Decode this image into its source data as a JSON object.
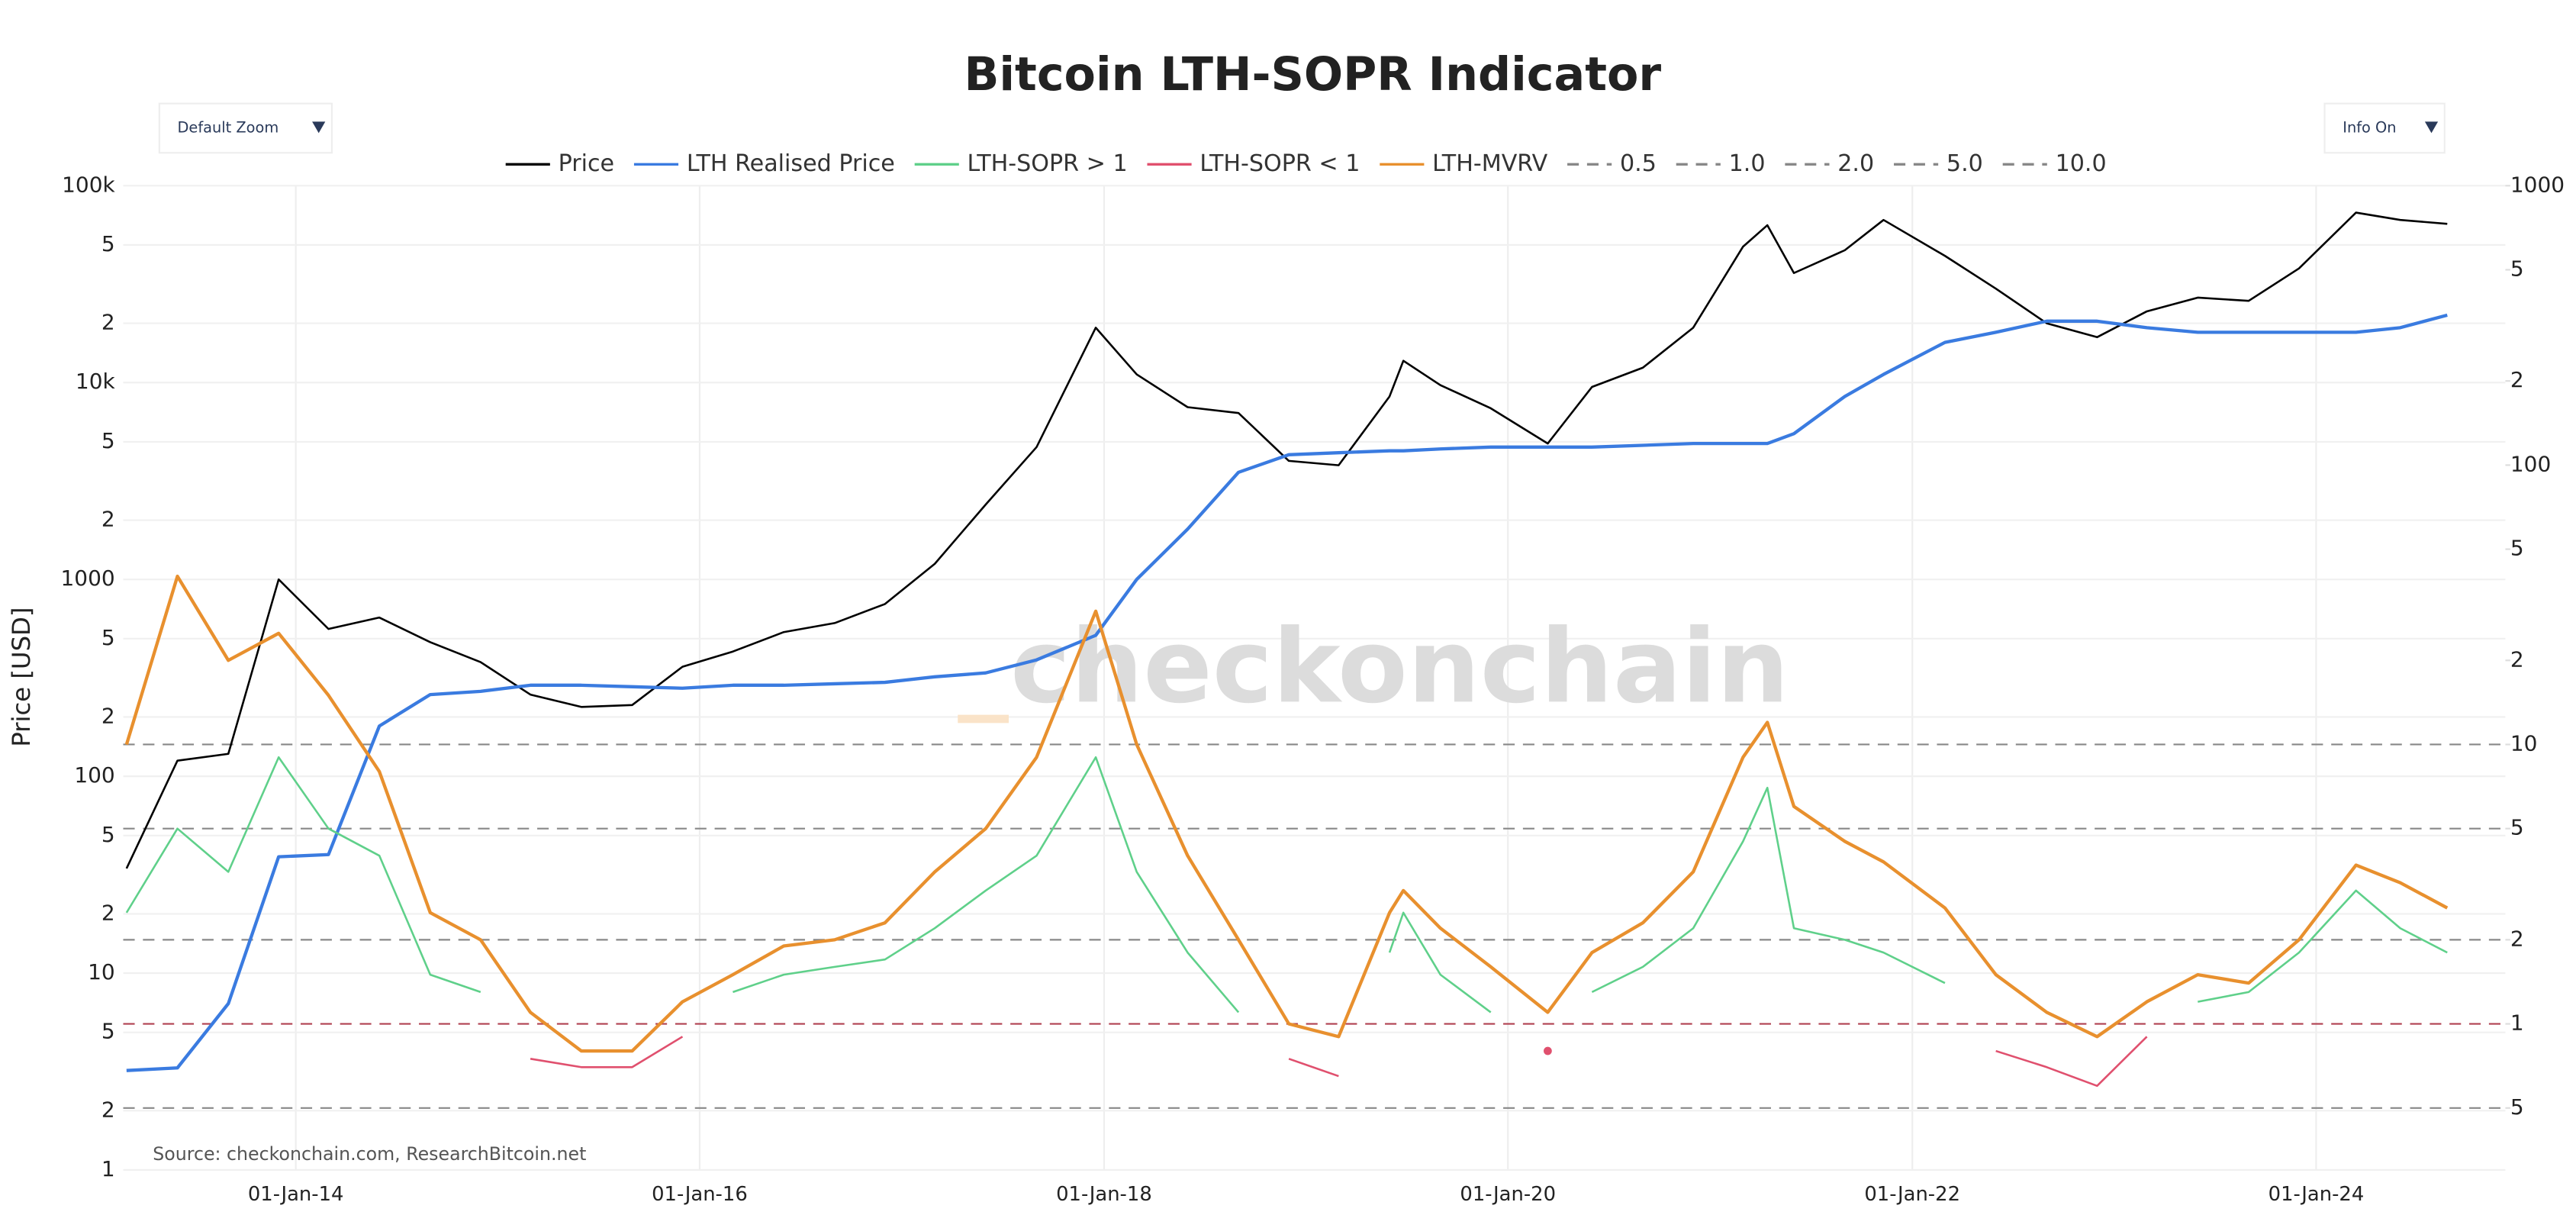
{
  "controls": {
    "zoom": "Default Zoom",
    "info": "Info On"
  },
  "chart_data": {
    "type": "line",
    "title": "Bitcoin LTH-SOPR Indicator",
    "ylabel": "Price [USD]",
    "source": "Source: checkonchain.com, ResearchBitcoin.net",
    "watermark": "checkonchain",
    "log_scale": true,
    "grid": true,
    "legend": "top",
    "x": [
      "2013-03-01",
      "2013-06-01",
      "2013-09-01",
      "2013-12-01",
      "2014-03-01",
      "2014-06-01",
      "2014-09-01",
      "2014-12-01",
      "2015-03-01",
      "2015-06-01",
      "2015-09-01",
      "2015-12-01",
      "2016-03-01",
      "2016-06-01",
      "2016-09-01",
      "2016-12-01",
      "2017-03-01",
      "2017-06-01",
      "2017-09-01",
      "2017-12-17",
      "2018-03-01",
      "2018-06-01",
      "2018-09-01",
      "2018-12-01",
      "2019-03-01",
      "2019-06-01",
      "2019-06-26",
      "2019-09-01",
      "2019-12-01",
      "2020-03-13",
      "2020-06-01",
      "2020-09-01",
      "2020-12-01",
      "2021-03-01",
      "2021-04-14",
      "2021-06-01",
      "2021-09-01",
      "2021-11-10",
      "2022-03-01",
      "2022-06-01",
      "2022-09-01",
      "2022-12-01",
      "2023-03-01",
      "2023-06-01",
      "2023-09-01",
      "2023-12-01",
      "2024-03-13",
      "2024-06-01",
      "2024-08-25"
    ],
    "xlim": [
      "2013-02-23",
      "2024-12-08"
    ],
    "xticks": [
      {
        "value": "2014-01-01",
        "label": "01-Jan-14"
      },
      {
        "value": "2016-01-01",
        "label": "01-Jan-16"
      },
      {
        "value": "2018-01-01",
        "label": "01-Jan-18"
      },
      {
        "value": "2020-01-01",
        "label": "01-Jan-20"
      },
      {
        "value": "2022-01-01",
        "label": "01-Jan-22"
      },
      {
        "value": "2024-01-01",
        "label": "01-Jan-24"
      }
    ],
    "ylim": [
      1,
      100000
    ],
    "yticks": [
      1,
      {
        "value": 2,
        "label": "2"
      },
      5,
      10,
      {
        "value": 20,
        "label": "2"
      },
      {
        "value": 50,
        "label": "5"
      },
      100,
      {
        "value": 200,
        "label": "2"
      },
      {
        "value": 500,
        "label": "5"
      },
      1000,
      {
        "value": 2000,
        "label": "2"
      },
      {
        "value": 5000,
        "label": "5"
      },
      {
        "value": 10000,
        "label": "10k"
      },
      {
        "value": 20000,
        "label": "2"
      },
      {
        "value": 50000,
        "label": "5"
      },
      {
        "value": 100000,
        "label": "100k"
      }
    ],
    "y2lim": [
      0.3,
      1000
    ],
    "y2ticks": [
      {
        "value": 0.5,
        "label": "5"
      },
      1,
      2,
      5,
      10,
      {
        "value": 20,
        "label": "2"
      },
      {
        "value": 50,
        "label": "5"
      },
      100,
      {
        "value": 200,
        "label": "2"
      },
      {
        "value": 500,
        "label": "5"
      },
      1000
    ],
    "series": [
      {
        "name": "Price",
        "color": "#000000",
        "width": 1.2,
        "values": [
          34,
          120,
          130,
          1000,
          560,
          640,
          480,
          380,
          260,
          225,
          230,
          360,
          430,
          540,
          600,
          750,
          1200,
          2400,
          4700,
          19000,
          11000,
          7500,
          7000,
          4000,
          3800,
          8500,
          12900,
          9700,
          7400,
          4900,
          9500,
          11900,
          19000,
          49000,
          63000,
          36000,
          47000,
          67000,
          44000,
          30000,
          20000,
          17000,
          23000,
          27000,
          26000,
          38000,
          73000,
          67000,
          64000
        ]
      },
      {
        "name": "LTH Realised Price",
        "color": "#3a7be0",
        "width": 2,
        "values": [
          3.2,
          3.3,
          7,
          39,
          40,
          180,
          260,
          270,
          290,
          290,
          285,
          280,
          290,
          290,
          295,
          300,
          320,
          335,
          390,
          520,
          1000,
          1800,
          3500,
          4300,
          4400,
          4500,
          4500,
          4600,
          4700,
          4700,
          4700,
          4800,
          4900,
          4900,
          4900,
          5500,
          8500,
          11000,
          16000,
          18000,
          20500,
          20500,
          19000,
          18000,
          18000,
          18000,
          18000,
          19000,
          22000
        ]
      },
      {
        "name": "LTH-SOPR > 1",
        "color": "#5fd08a",
        "width": 1.2,
        "axis": "y2",
        "values": [
          2.5,
          5,
          3.5,
          9,
          5,
          4,
          1.5,
          1.3,
          null,
          null,
          null,
          null,
          1.3,
          1.5,
          1.6,
          1.7,
          2.2,
          3.0,
          4.0,
          9,
          3.5,
          1.8,
          1.1,
          null,
          null,
          1.8,
          2.5,
          1.5,
          1.1,
          null,
          1.3,
          1.6,
          2.2,
          4.5,
          7,
          2.2,
          2.0,
          1.8,
          1.4,
          null,
          null,
          null,
          null,
          1.2,
          1.3,
          1.8,
          3,
          2.2,
          1.8
        ]
      },
      {
        "name": "LTH-SOPR < 1",
        "color": "#e0506e",
        "width": 1.2,
        "axis": "y2",
        "values": [
          null,
          null,
          null,
          null,
          null,
          null,
          null,
          null,
          0.75,
          0.7,
          0.7,
          0.9,
          null,
          null,
          null,
          null,
          null,
          null,
          null,
          null,
          null,
          null,
          null,
          0.75,
          0.65,
          null,
          null,
          null,
          null,
          0.8,
          null,
          null,
          null,
          null,
          null,
          null,
          null,
          null,
          null,
          0.8,
          0.7,
          0.6,
          0.9,
          null,
          null,
          null,
          null,
          null,
          null
        ]
      },
      {
        "name": "LTH-MVRV",
        "color": "#e8902e",
        "width": 2,
        "axis": "y2",
        "values": [
          10,
          40,
          20,
          25,
          15,
          8,
          2.5,
          2,
          1.1,
          0.8,
          0.8,
          1.2,
          1.5,
          1.9,
          2.0,
          2.3,
          3.5,
          5,
          9,
          30,
          10,
          4,
          2,
          1.0,
          0.9,
          2.5,
          3.0,
          2.2,
          1.6,
          1.1,
          1.8,
          2.3,
          3.5,
          9,
          12,
          6,
          4.5,
          3.8,
          2.6,
          1.5,
          1.1,
          0.9,
          1.2,
          1.5,
          1.4,
          2.0,
          3.7,
          3.2,
          2.6
        ]
      }
    ],
    "reference_lines": [
      {
        "name": "0.5",
        "value": 0.5,
        "color": "#888888"
      },
      {
        "name": "1.0",
        "value": 1,
        "color": "#b04050"
      },
      {
        "name": "2.0",
        "value": 2,
        "color": "#888888"
      },
      {
        "name": "5.0",
        "value": 5,
        "color": "#888888"
      },
      {
        "name": "10.0",
        "value": 10,
        "color": "#888888"
      }
    ]
  }
}
